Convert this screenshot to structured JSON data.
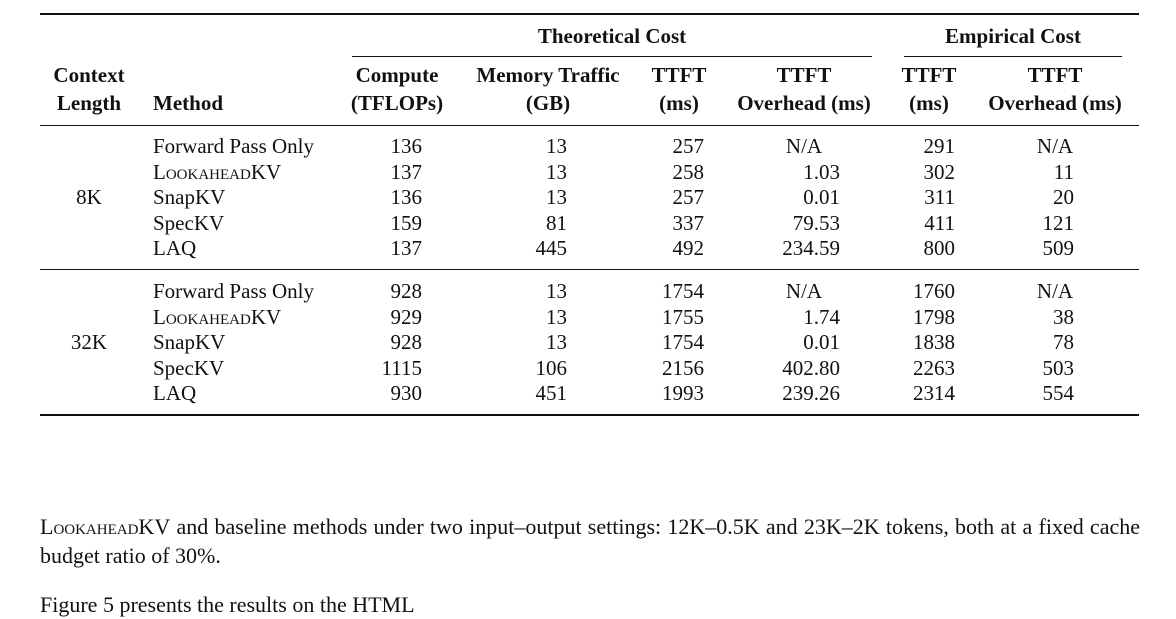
{
  "table": {
    "group_headers": {
      "theoretical": "Theoretical Cost",
      "empirical": "Empirical Cost"
    },
    "columns": [
      [
        "Context",
        "Length"
      ],
      [
        "",
        "Method"
      ],
      [
        "Compute",
        "(TFLOPs)"
      ],
      [
        "Memory Traffic",
        "(GB)"
      ],
      [
        "TTFT",
        "(ms)"
      ],
      [
        "TTFT",
        "Overhead (ms)"
      ],
      [
        "TTFT",
        "(ms)"
      ],
      [
        "TTFT",
        "Overhead (ms)"
      ]
    ],
    "groups": [
      {
        "context_length": "8K",
        "rows": [
          [
            "Forward Pass Only",
            "136",
            "13",
            "257",
            "N/A",
            "291",
            "N/A"
          ],
          [
            "LookaheadKV",
            "137",
            "13",
            "258",
            "1.03",
            "302",
            "11"
          ],
          [
            "SnapKV",
            "136",
            "13",
            "257",
            "0.01",
            "311",
            "20"
          ],
          [
            "SpecKV",
            "159",
            "81",
            "337",
            "79.53",
            "411",
            "121"
          ],
          [
            "LAQ",
            "137",
            "445",
            "492",
            "234.59",
            "800",
            "509"
          ]
        ]
      },
      {
        "context_length": "32K",
        "rows": [
          [
            "Forward Pass Only",
            "928",
            "13",
            "1754",
            "N/A",
            "1760",
            "N/A"
          ],
          [
            "LookaheadKV",
            "929",
            "13",
            "1755",
            "1.74",
            "1798",
            "38"
          ],
          [
            "SnapKV",
            "928",
            "13",
            "1754",
            "0.01",
            "1838",
            "78"
          ],
          [
            "SpecKV",
            "1115",
            "106",
            "2156",
            "402.80",
            "2263",
            "503"
          ],
          [
            "LAQ",
            "930",
            "451",
            "1993",
            "239.26",
            "2314",
            "554"
          ]
        ]
      }
    ]
  },
  "body_text": {
    "para1_sc": "LookaheadKV",
    "para1": " and baseline methods under two input–output settings: 12K–0.5K and 23K–2K tokens, both at a fixed cache budget ratio of 30%.",
    "para2": "Figure 5 presents the results on the HTML"
  }
}
